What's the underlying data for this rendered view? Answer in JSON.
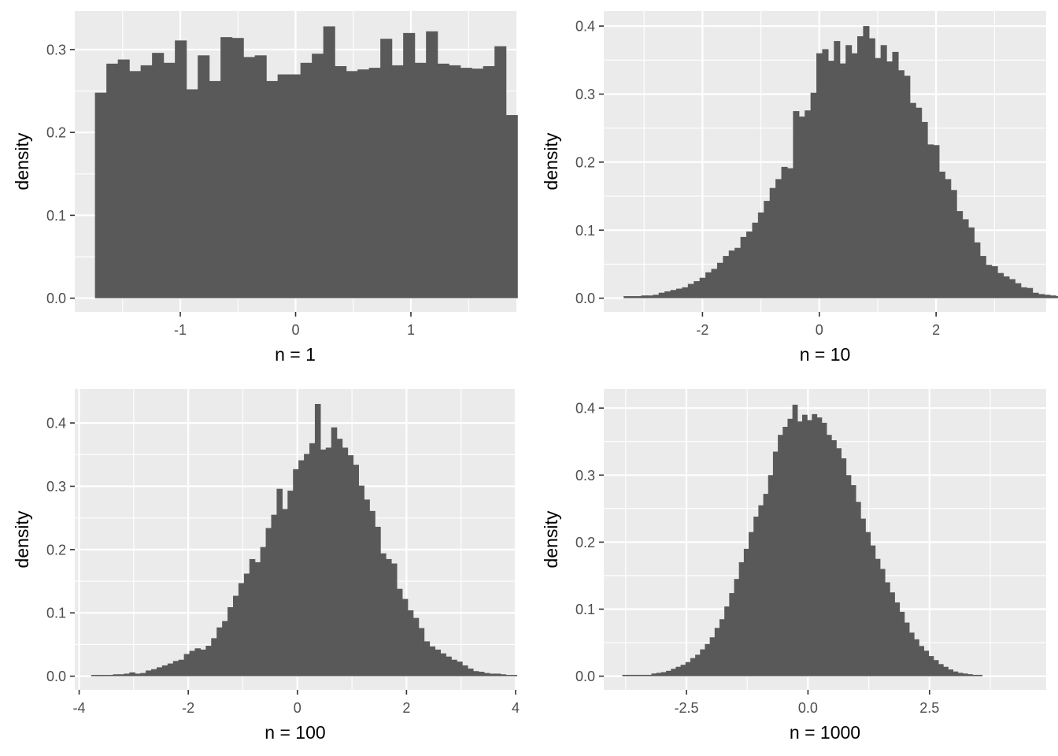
{
  "chart_data": [
    {
      "type": "bar",
      "title": "",
      "xlabel": "n = 1",
      "ylabel": "density",
      "xlim": [
        -1.915,
        1.915
      ],
      "ylim": [
        -0.0165,
        0.3465
      ],
      "xticks": [
        -1,
        0,
        1
      ],
      "xtick_labels": [
        "-1",
        "0",
        "1"
      ],
      "yticks": [
        0,
        0.1,
        0.2,
        0.3
      ],
      "ytick_labels": [
        "0.0",
        "0.1",
        "0.2",
        "0.3"
      ],
      "xminor": [
        -1.5,
        -0.5,
        0.5,
        1.5
      ],
      "yminor": [
        0.05,
        0.15,
        0.25
      ],
      "bin_start": -1.74,
      "bin_width": 0.099,
      "values": [
        0.248,
        0.283,
        0.288,
        0.274,
        0.281,
        0.296,
        0.284,
        0.311,
        0.252,
        0.293,
        0.262,
        0.315,
        0.314,
        0.291,
        0.293,
        0.262,
        0.27,
        0.27,
        0.284,
        0.295,
        0.328,
        0.28,
        0.274,
        0.276,
        0.278,
        0.313,
        0.281,
        0.32,
        0.284,
        0.322,
        0.283,
        0.281,
        0.278,
        0.277,
        0.28,
        0.304,
        0.221
      ]
    },
    {
      "type": "bar",
      "title": "",
      "xlabel": "n = 10",
      "ylabel": "density",
      "xlim": [
        -3.69,
        3.885
      ],
      "ylim": [
        -0.0201,
        0.4221
      ],
      "xticks": [
        -2,
        0,
        2
      ],
      "xtick_labels": [
        "-2",
        "0",
        "2"
      ],
      "yticks": [
        0,
        0.1,
        0.2,
        0.3,
        0.4
      ],
      "ytick_labels": [
        "0.0",
        "0.1",
        "0.2",
        "0.3",
        "0.4"
      ],
      "xminor": [
        -3,
        -1,
        1,
        3
      ],
      "yminor": [
        0.05,
        0.15,
        0.25,
        0.35
      ],
      "bin_start": -3.35,
      "bin_width": 0.1,
      "values": [
        0.003,
        0.003,
        0.003,
        0.004,
        0.004,
        0.005,
        0.008,
        0.01,
        0.012,
        0.014,
        0.016,
        0.021,
        0.025,
        0.03,
        0.038,
        0.043,
        0.052,
        0.062,
        0.07,
        0.074,
        0.09,
        0.098,
        0.111,
        0.126,
        0.143,
        0.162,
        0.175,
        0.193,
        0.191,
        0.275,
        0.267,
        0.276,
        0.302,
        0.36,
        0.366,
        0.349,
        0.378,
        0.345,
        0.372,
        0.36,
        0.385,
        0.4,
        0.382,
        0.353,
        0.372,
        0.348,
        0.362,
        0.335,
        0.327,
        0.287,
        0.28,
        0.259,
        0.226,
        0.225,
        0.186,
        0.175,
        0.159,
        0.128,
        0.116,
        0.104,
        0.082,
        0.062,
        0.049,
        0.047,
        0.037,
        0.032,
        0.028,
        0.022,
        0.016,
        0.015,
        0.008,
        0.006,
        0.005,
        0.004,
        0.003,
        0.002,
        0.001
      ]
    },
    {
      "type": "bar",
      "title": "",
      "xlabel": "n = 100",
      "ylabel": "density",
      "xlim": [
        -4.08,
        4.0
      ],
      "ylim": [
        -0.0216,
        0.4536
      ],
      "xticks": [
        -4,
        -2,
        0,
        2,
        4
      ],
      "xtick_labels": [
        "-4",
        "-2",
        "0",
        "2",
        "4"
      ],
      "yticks": [
        0,
        0.1,
        0.2,
        0.3,
        0.4
      ],
      "ytick_labels": [
        "0.0",
        "0.1",
        "0.2",
        "0.3",
        "0.4"
      ],
      "xminor": [
        -3,
        -1,
        1,
        3
      ],
      "yminor": [
        0.05,
        0.15,
        0.25,
        0.35
      ],
      "bin_start": -3.78,
      "bin_width": 0.1,
      "values": [
        0.002,
        0.002,
        0.002,
        0.002,
        0.003,
        0.003,
        0.004,
        0.006,
        0.004,
        0.005,
        0.009,
        0.011,
        0.014,
        0.017,
        0.02,
        0.024,
        0.026,
        0.035,
        0.04,
        0.044,
        0.042,
        0.048,
        0.06,
        0.077,
        0.087,
        0.109,
        0.127,
        0.147,
        0.162,
        0.185,
        0.18,
        0.204,
        0.234,
        0.255,
        0.296,
        0.264,
        0.293,
        0.327,
        0.341,
        0.351,
        0.368,
        0.43,
        0.358,
        0.361,
        0.393,
        0.375,
        0.361,
        0.349,
        0.334,
        0.301,
        0.279,
        0.261,
        0.236,
        0.194,
        0.185,
        0.178,
        0.138,
        0.122,
        0.104,
        0.092,
        0.076,
        0.055,
        0.047,
        0.042,
        0.036,
        0.031,
        0.026,
        0.023,
        0.017,
        0.012,
        0.008,
        0.007,
        0.005,
        0.004,
        0.004,
        0.003,
        0.002,
        0.002
      ]
    },
    {
      "type": "bar",
      "title": "",
      "xlabel": "n = 1000",
      "ylabel": "density",
      "xlim": [
        -4.2,
        4.9
      ],
      "ylim": [
        -0.0204,
        0.4284
      ],
      "xticks": [
        -2.5,
        0,
        2.5
      ],
      "xtick_labels": [
        "-2.5",
        "0.0",
        "2.5"
      ],
      "yticks": [
        0,
        0.1,
        0.2,
        0.3,
        0.4
      ],
      "ytick_labels": [
        "0.0",
        "0.1",
        "0.2",
        "0.3",
        "0.4"
      ],
      "xminor": [
        -3.75,
        -1.25,
        1.25,
        3.75
      ],
      "yminor": [
        0.05,
        0.15,
        0.25,
        0.35
      ],
      "bin_start": -3.82,
      "bin_width": 0.1,
      "values": [
        0.002,
        0.002,
        0.002,
        0.002,
        0.002,
        0.002,
        0.004,
        0.005,
        0.006,
        0.008,
        0.011,
        0.014,
        0.017,
        0.021,
        0.027,
        0.032,
        0.04,
        0.048,
        0.058,
        0.072,
        0.085,
        0.104,
        0.124,
        0.145,
        0.17,
        0.19,
        0.215,
        0.238,
        0.255,
        0.272,
        0.3,
        0.335,
        0.36,
        0.372,
        0.384,
        0.405,
        0.38,
        0.39,
        0.382,
        0.391,
        0.386,
        0.378,
        0.36,
        0.352,
        0.34,
        0.325,
        0.3,
        0.285,
        0.26,
        0.235,
        0.215,
        0.195,
        0.175,
        0.16,
        0.14,
        0.125,
        0.11,
        0.096,
        0.08,
        0.065,
        0.055,
        0.045,
        0.038,
        0.03,
        0.024,
        0.018,
        0.014,
        0.01,
        0.007,
        0.005,
        0.004,
        0.003,
        0.002,
        0.002
      ]
    }
  ]
}
